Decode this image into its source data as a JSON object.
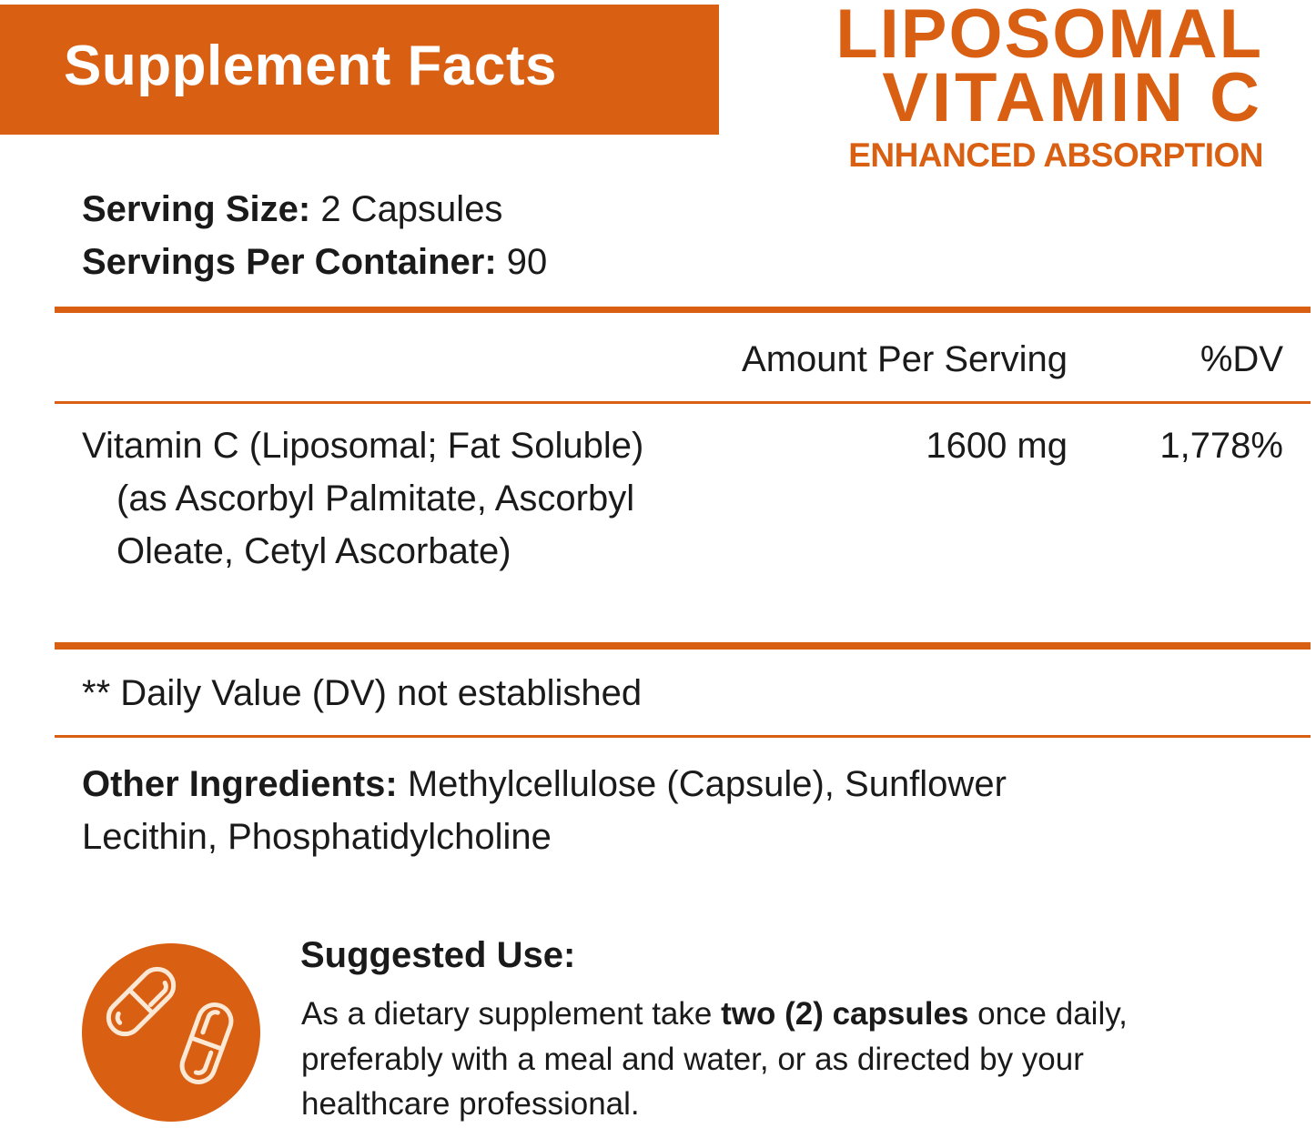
{
  "header": {
    "title": "Supplement Facts"
  },
  "brand": {
    "line1": "LIPOSOMAL",
    "line2": "VITAMIN C",
    "line3": "ENHANCED ABSORPTION"
  },
  "serving": {
    "size_label": "Serving Size:",
    "size_value": " 2 Capsules",
    "per_container_label": "Servings Per Container:",
    "per_container_value": " 90"
  },
  "table": {
    "col_amount": "Amount Per Serving",
    "col_dv": "%DV",
    "rows": [
      {
        "name_line1": "Vitamin C (Liposomal; Fat Soluble)",
        "name_line2": "(as Ascorbyl Palmitate, Ascorbyl",
        "name_line3": "Oleate, Cetyl Ascorbate)",
        "amount": "1600 mg",
        "dv": "1,778%"
      }
    ]
  },
  "footnote": "** Daily Value (DV) not established",
  "other_ingredients": {
    "label": "Other Ingredients:",
    "line1": " Methylcellulose (Capsule), Sunflower",
    "line2": "Lecithin, Phosphatidylcholine"
  },
  "suggested_use": {
    "heading": "Suggested Use:",
    "line1_pre": "As a dietary supplement take ",
    "line1_bold": "two (2) capsules",
    "line1_post": " once daily,",
    "line2": "preferably with a meal and water, or as directed by your",
    "line3": "healthcare professional.",
    "icon": "capsules-icon"
  },
  "colors": {
    "accent": "#d95f12",
    "text": "#1a1a1a"
  }
}
